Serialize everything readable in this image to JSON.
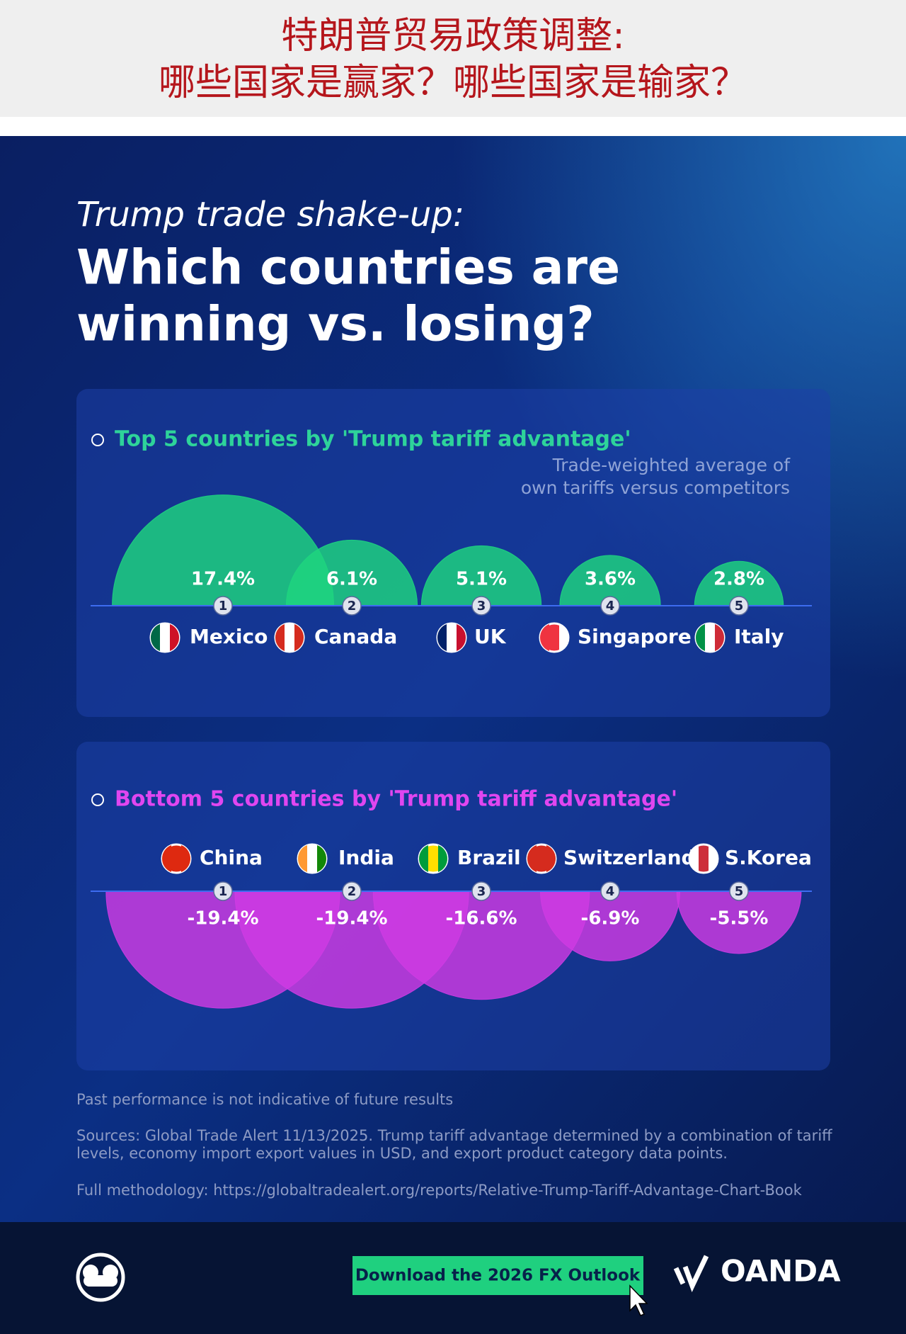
{
  "header": {
    "title": [
      "特朗普贸易政策调整:",
      "哪些国家是赢家？哪些国家是输家？"
    ]
  },
  "subtitle": "Trump trade shake-up:",
  "title": [
    "Which countries are",
    "winning vs. losing?"
  ],
  "chart_data": [
    {
      "type": "bubble",
      "title": "Top 5 countries by 'Trump tariff advantage'",
      "annotation": [
        "Trade-weighted average of",
        "own tariffs versus competitors"
      ],
      "categories": [
        "Mexico",
        "Canada",
        "UK",
        "Singapore",
        "Italy"
      ],
      "ranks": [
        1,
        2,
        3,
        4,
        5
      ],
      "values": [
        17.4,
        6.1,
        5.1,
        3.6,
        2.8
      ],
      "value_labels": [
        "17.4%",
        "6.1%",
        "5.1%",
        "3.6%",
        "2.8%"
      ],
      "color": "#1ed67f"
    },
    {
      "type": "bubble",
      "title": "Bottom 5 countries by 'Trump tariff advantage'",
      "categories": [
        "China",
        "India",
        "Brazil",
        "Switzerland",
        "S.Korea"
      ],
      "ranks": [
        1,
        2,
        3,
        4,
        5
      ],
      "values": [
        -19.4,
        -19.4,
        -16.6,
        -6.9,
        -5.5
      ],
      "value_labels": [
        "-19.4%",
        "-19.4%",
        "-16.6%",
        "-6.9%",
        "-5.5%"
      ],
      "color": "#cf3be3"
    }
  ],
  "footer": {
    "disclaimer": "Past performance is not indicative of future results",
    "sources": [
      "Sources: Global Trade Alert 11/13/2025. Trump tariff advantage determined by a combination of tariff",
      "levels, economy import export values in USD, and export product category data points."
    ],
    "methodology": "Full methodology: https://globaltradealert.org/reports/Relative-Trump-Tariff-Advantage-Chart-Book"
  },
  "cta": "Download the 2026 FX Outlook",
  "brand": "OANDA"
}
